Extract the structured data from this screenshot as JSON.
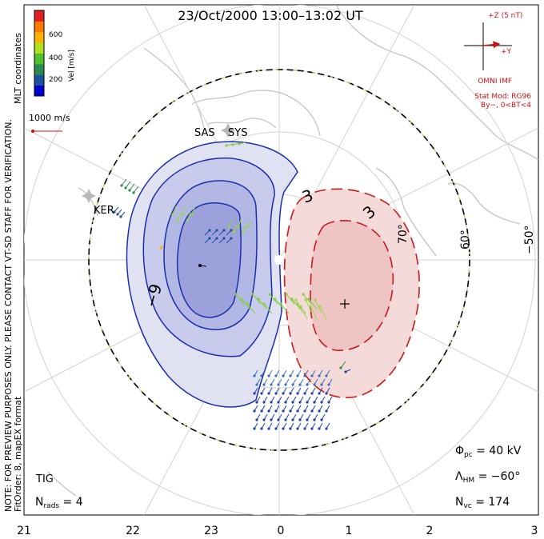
{
  "title": "23/Oct/2000 13:00–13:02 UT",
  "color_bar": {
    "label": "Vel [m/s]",
    "ticks": [
      "600",
      "400",
      "200"
    ],
    "colors": [
      "#e02020",
      "#ff7a00",
      "#ffb000",
      "#b0e020",
      "#50c030",
      "#2a8a50",
      "#2050a0",
      "#0000d0"
    ]
  },
  "vector_scale": {
    "label": "1000 m/s",
    "color": "#d01010"
  },
  "side_text": {
    "coordinates": "MLT coordinates",
    "notice": "NOTE: FOR PREVIEW PURPOSES ONLY. PLEASE CONTACT VT-SD STAFF FOR VERIFICATION.",
    "fit": "FitOrder: 8,  mapEX format"
  },
  "imf": {
    "scale_label": "+Z (5 nT)",
    "y_label": "+Y",
    "source": "OMNI IMF",
    "model": "Stat Mod: RG96",
    "condition": "By−, 0<BT<4",
    "color": "#d01010"
  },
  "stations": [
    "SAS",
    "SYS",
    "KER",
    "TIG"
  ],
  "latitude_labels": [
    "70°",
    "60°",
    "−50°"
  ],
  "contours": {
    "negative_label": "−9",
    "positive_labels": [
      "3",
      "3"
    ],
    "negative_color": "#1a2fb0",
    "positive_color": "#cc1a1a"
  },
  "stats": {
    "phi_symbol": "Φ",
    "phi_sub": "pc",
    "phi_value": " = 40 kV",
    "lambda_symbol": "Λ",
    "lambda_sub": "HM",
    "lambda_value": " = −60°",
    "nvc_symbol": "N",
    "nvc_sub": "vc",
    "nvc_value": " = 174",
    "nrads_symbol": "N",
    "nrads_sub": "rads",
    "nrads_value": " = 4"
  },
  "mlt_axis": [
    "21",
    "22",
    "23",
    "0",
    "1",
    "2",
    "3"
  ]
}
